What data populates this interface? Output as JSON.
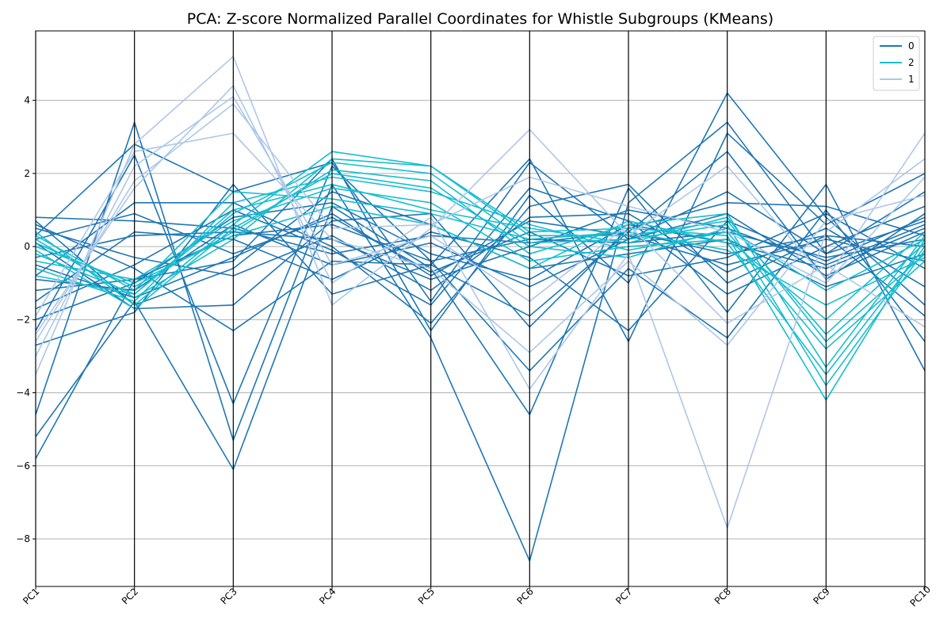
{
  "chart_data": {
    "type": "line",
    "title": "PCA: Z-score Normalized Parallel Coordinates for Whistle Subgroups (KMeans)",
    "xlabel": "",
    "ylabel": "",
    "categories": [
      "PC1",
      "PC2",
      "PC3",
      "PC4",
      "PC5",
      "PC6",
      "PC7",
      "PC8",
      "PC9",
      "PC10"
    ],
    "ylim": [
      -9.3,
      5.9
    ],
    "yticks": [
      -8,
      -6,
      -4,
      -2,
      0,
      2,
      4
    ],
    "ytick_labels": [
      "−8",
      "−6",
      "−4",
      "−2",
      "0",
      "2",
      "4"
    ],
    "grid": "horizontal",
    "legend_position": "top-right",
    "legend": [
      "0",
      "2",
      "1"
    ],
    "colors": {
      "0": "#1f77b4",
      "2": "#17becf",
      "1": "#aec7e8"
    },
    "series": [
      {
        "name": "0",
        "color": "#1f77b4",
        "lines": [
          [
            0.8,
            0.7,
            0.5,
            -0.2,
            0.3,
            0.1,
            0.4,
            -0.2,
            0.3,
            0.0
          ],
          [
            -1.2,
            -0.9,
            0.3,
            0.6,
            -0.4,
            0.2,
            0.1,
            0.4,
            -0.3,
            0.2
          ],
          [
            -0.5,
            -1.4,
            -0.3,
            0.9,
            -0.8,
            0.7,
            0.3,
            -0.5,
            0.2,
            -0.4
          ],
          [
            -2.0,
            -1.0,
            0.8,
            1.2,
            -0.2,
            -0.9,
            0.6,
            0.1,
            -0.6,
            0.5
          ],
          [
            0.3,
            2.8,
            1.5,
            2.3,
            -1.5,
            2.3,
            0.2,
            1.5,
            -0.2,
            0.7
          ],
          [
            -5.8,
            -0.9,
            -0.4,
            2.4,
            -2.3,
            1.4,
            -1.0,
            4.2,
            0.8,
            -1.6
          ],
          [
            -5.2,
            -1.5,
            -6.1,
            1.1,
            -0.6,
            -4.6,
            1.6,
            -1.8,
            1.7,
            -3.4
          ],
          [
            -4.6,
            3.4,
            -5.3,
            1.7,
            -2.5,
            -8.6,
            1.2,
            3.4,
            -0.2,
            1.5
          ],
          [
            -2.7,
            -1.8,
            1.7,
            -1.3,
            -0.5,
            2.4,
            -2.6,
            3.1,
            0.6,
            2.0
          ],
          [
            -2.3,
            2.5,
            -4.3,
            2.2,
            -0.4,
            -3.4,
            -0.6,
            -2.5,
            1.0,
            -2.6
          ],
          [
            0.6,
            -0.6,
            -2.3,
            -0.4,
            -0.5,
            -1.9,
            0.4,
            2.6,
            -0.9,
            0.9
          ],
          [
            -0.8,
            1.2,
            1.2,
            0.0,
            -2.1,
            1.1,
            1.7,
            -1.0,
            0.3,
            -1.9
          ],
          [
            0.1,
            -1.7,
            -1.6,
            0.7,
            0.9,
            -2.2,
            0.5,
            1.2,
            1.1,
            0.3
          ],
          [
            -1.5,
            0.4,
            0.2,
            -0.9,
            0.4,
            -0.3,
            -2.3,
            0.7,
            -0.4,
            0.8
          ],
          [
            0.5,
            -0.3,
            -0.8,
            0.3,
            -1.2,
            0.8,
            0.9,
            -0.7,
            0.5,
            -1.1
          ],
          [
            -0.9,
            -1.2,
            0.6,
            -0.5,
            0.1,
            -1.1,
            0.2,
            0.9,
            -0.8,
            0.4
          ],
          [
            0.2,
            0.9,
            -0.2,
            0.8,
            -0.7,
            0.4,
            -0.8,
            -0.3,
            0.9,
            -0.6
          ],
          [
            -1.7,
            -0.5,
            1.0,
            -0.1,
            -1.6,
            1.6,
            0.7,
            -1.3,
            0.0,
            1.1
          ],
          [
            0.7,
            -1.6,
            -0.6,
            1.5,
            0.6,
            -0.6,
            -0.2,
            0.2,
            -1.1,
            -0.2
          ],
          [
            -0.3,
            0.3,
            0.4,
            0.2,
            -0.9,
            0.0,
            1.0,
            0.5,
            -0.5,
            0.6
          ]
        ]
      },
      {
        "name": "2",
        "color": "#17becf",
        "lines": [
          [
            0.4,
            -1.6,
            0.6,
            2.6,
            2.2,
            0.4,
            0.5,
            0.3,
            -4.2,
            0.2
          ],
          [
            -0.2,
            -1.3,
            0.9,
            2.3,
            2.0,
            0.1,
            0.2,
            0.6,
            -3.8,
            -0.1
          ],
          [
            0.1,
            -1.1,
            0.4,
            2.1,
            1.8,
            -0.2,
            0.6,
            0.9,
            -3.3,
            0.3
          ],
          [
            -0.6,
            -1.5,
            1.2,
            1.9,
            1.5,
            0.6,
            -0.1,
            0.4,
            -2.8,
            -0.4
          ],
          [
            0.2,
            -1.4,
            0.2,
            2.4,
            2.2,
            0.3,
            0.3,
            0.7,
            -2.4,
            0.1
          ],
          [
            -0.4,
            -0.9,
            0.7,
            1.6,
            1.2,
            -0.4,
            0.0,
            0.2,
            -2.0,
            0.4
          ],
          [
            0.3,
            -1.2,
            1.5,
            1.3,
            0.9,
            0.2,
            0.4,
            -0.1,
            -1.6,
            -0.3
          ],
          [
            -0.1,
            -1.7,
            0.5,
            2.0,
            1.6,
            0.0,
            -0.3,
            0.5,
            -1.2,
            0.2
          ],
          [
            0.0,
            -1.0,
            0.3,
            1.1,
            0.6,
            -0.6,
            0.7,
            0.1,
            -3.5,
            0.0
          ],
          [
            -0.8,
            -1.3,
            1.0,
            1.7,
            1.0,
            0.5,
            0.1,
            0.8,
            -2.6,
            -0.2
          ]
        ]
      },
      {
        "name": "1",
        "color": "#aec7e8",
        "lines": [
          [
            -3.5,
            2.8,
            5.2,
            -1.6,
            0.5,
            3.2,
            0.3,
            2.2,
            -0.9,
            3.1
          ],
          [
            -2.4,
            1.6,
            4.4,
            -1.0,
            0.8,
            -3.9,
            -0.2,
            -7.7,
            0.4,
            2.4
          ],
          [
            -3.0,
            2.2,
            4.1,
            -0.5,
            0.3,
            -1.5,
            0.6,
            -2.1,
            -0.5,
            -2.2
          ],
          [
            -1.9,
            2.6,
            3.1,
            0.2,
            -0.6,
            -2.9,
            -0.4,
            -2.7,
            0.7,
            1.4
          ],
          [
            -2.6,
            1.8,
            3.9,
            0.5,
            0.6,
            1.9,
            1.1,
            0.4,
            -1.0,
            1.9
          ]
        ]
      }
    ]
  }
}
